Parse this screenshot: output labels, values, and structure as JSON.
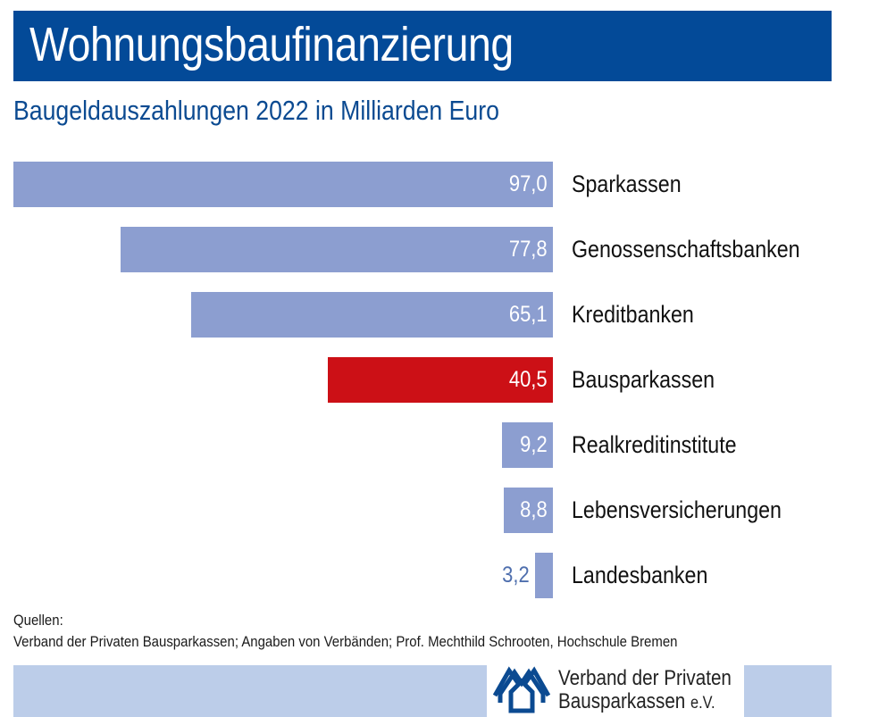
{
  "colors": {
    "header_bg": "#034a98",
    "subtitle": "#0b4a91",
    "bar_default": "#8c9ed0",
    "bar_highlight": "#cc1016",
    "value_outside": "#4f6fae",
    "footer_band": "#bccde9"
  },
  "chart_data": {
    "type": "bar",
    "orientation": "horizontal",
    "title": "Wohnungsbaufinanzierung",
    "subtitle": "Baugeldauszahlungen 2022 in Milliarden Euro",
    "xlabel": "",
    "ylabel": "",
    "unit": "Mrd. Euro",
    "xlim": [
      0,
      97.0
    ],
    "grid": false,
    "legend": "none",
    "categories": [
      "Sparkassen",
      "Genossenschaftsbanken",
      "Kreditbanken",
      "Bausparkassen",
      "Realkreditinstitute",
      "Lebensversicherungen",
      "Landesbanken"
    ],
    "values": [
      97.0,
      77.8,
      65.1,
      40.5,
      9.2,
      8.8,
      3.2
    ],
    "value_labels": [
      "97,0",
      "77,8",
      "65,1",
      "40,5",
      "9,2",
      "8,8",
      "3,2"
    ],
    "highlighted": [
      "Bausparkassen"
    ]
  },
  "sources": {
    "label": "Quellen:",
    "text": "Verband der Privaten Bausparkassen; Angaben von Verbänden; Prof. Mechthild Schrooten, Hochschule Bremen"
  },
  "footer": {
    "logo_icon": "houses-logo-icon",
    "logo_line1": "Verband der Privaten",
    "logo_line2_main": "Bausparkassen",
    "logo_line2_suffix": "e.V."
  }
}
